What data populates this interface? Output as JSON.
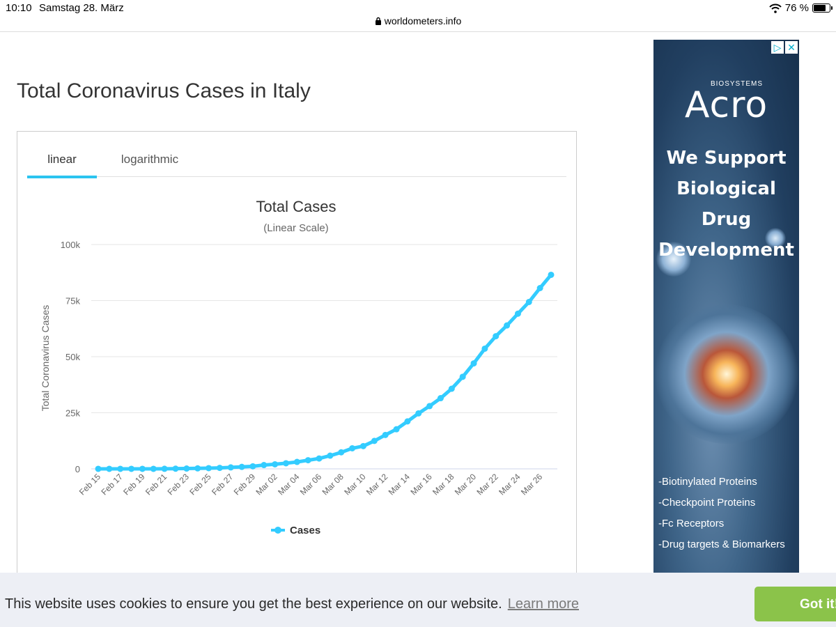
{
  "status_bar": {
    "time": "10:10",
    "date": "Samstag 28. März",
    "url": "worldometers.info",
    "battery": "76 %",
    "battery_level": 0.76
  },
  "page": {
    "title": "Total Coronavirus Cases in Italy"
  },
  "tabs": {
    "linear": "linear",
    "logarithmic": "logarithmic",
    "active": "linear"
  },
  "chart_data": {
    "type": "line",
    "title": "Total Cases",
    "subtitle": "(Linear Scale)",
    "ylabel": "Total Coronavirus Cases",
    "xlabel": "",
    "ylim": [
      0,
      100000
    ],
    "yticks": [
      "0",
      "25k",
      "50k",
      "75k",
      "100k"
    ],
    "ytick_values": [
      0,
      25000,
      50000,
      75000,
      100000
    ],
    "grid": true,
    "legend_position": "bottom",
    "line_color": "#33ccff",
    "categories": [
      "Feb 15",
      "Feb 16",
      "Feb 17",
      "Feb 18",
      "Feb 19",
      "Feb 20",
      "Feb 21",
      "Feb 22",
      "Feb 23",
      "Feb 24",
      "Feb 25",
      "Feb 26",
      "Feb 27",
      "Feb 28",
      "Feb 29",
      "Mar 01",
      "Mar 02",
      "Mar 03",
      "Mar 04",
      "Mar 05",
      "Mar 06",
      "Mar 07",
      "Mar 08",
      "Mar 09",
      "Mar 10",
      "Mar 11",
      "Mar 12",
      "Mar 13",
      "Mar 14",
      "Mar 15",
      "Mar 16",
      "Mar 17",
      "Mar 18",
      "Mar 19",
      "Mar 20",
      "Mar 21",
      "Mar 22",
      "Mar 23",
      "Mar 24",
      "Mar 25",
      "Mar 26",
      "Mar 27"
    ],
    "xtick_labels": [
      "Feb 15",
      "Feb 17",
      "Feb 19",
      "Feb 21",
      "Feb 23",
      "Feb 25",
      "Feb 27",
      "Feb 29",
      "Mar 02",
      "Mar 04",
      "Mar 06",
      "Mar 08",
      "Mar 10",
      "Mar 12",
      "Mar 14",
      "Mar 16",
      "Mar 18",
      "Mar 20",
      "Mar 22",
      "Mar 24",
      "Mar 26"
    ],
    "series": [
      {
        "name": "Cases",
        "values": [
          3,
          3,
          3,
          3,
          3,
          3,
          20,
          79,
          150,
          227,
          320,
          445,
          650,
          888,
          1128,
          1694,
          2036,
          2502,
          3089,
          3858,
          4636,
          5883,
          7375,
          9172,
          10149,
          12462,
          15113,
          17660,
          21157,
          24747,
          27980,
          31506,
          35713,
          41035,
          47021,
          53578,
          59138,
          63927,
          69176,
          74386,
          80589,
          86498
        ]
      }
    ]
  },
  "ad": {
    "brand_small": "BIOSYSTEMS",
    "brand": "Acro",
    "headline": [
      "We Support",
      "Biological Drug",
      "Development"
    ],
    "items": [
      "-Biotinylated Proteins",
      "-Checkpoint Proteins",
      "-Fc Receptors",
      "-Drug targets & Biomarkers"
    ]
  },
  "cookie": {
    "text": "This website uses cookies to ensure you get the best experience on our website.",
    "link": "Learn more",
    "button": "Got it!"
  }
}
